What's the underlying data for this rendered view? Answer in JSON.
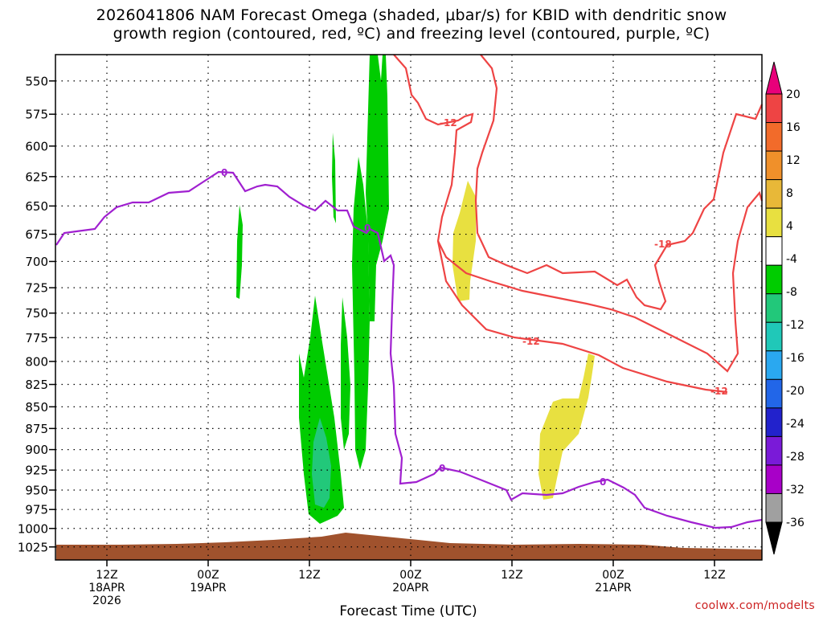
{
  "title": {
    "line1": "2026041806 NAM Forecast Omega (shaded, μbar/s) for KBID with dendritic snow",
    "line2": "growth region (contoured, red, ºC) and freezing level (contoured, purple, ºC)"
  },
  "credit": "coolwx.com/modelts",
  "chart_data": {
    "type": "heatmap",
    "xlabel": "Forecast Time (UTC)",
    "ylabel": "",
    "y_ticks": [
      "550",
      "575",
      "600",
      "625",
      "650",
      "675",
      "700",
      "725",
      "750",
      "775",
      "800",
      "825",
      "850",
      "875",
      "900",
      "925",
      "950",
      "975",
      "1000",
      "1025"
    ],
    "x_ticks": [
      {
        "lines": [
          "12Z",
          "18APR",
          "2026"
        ]
      },
      {
        "lines": [
          "00Z",
          "19APR"
        ]
      },
      {
        "lines": [
          "12Z"
        ]
      },
      {
        "lines": [
          "00Z",
          "20APR"
        ]
      },
      {
        "lines": [
          "12Z"
        ]
      },
      {
        "lines": [
          "00Z",
          "21APR"
        ]
      },
      {
        "lines": [
          "12Z"
        ]
      }
    ],
    "colorbar": {
      "labels": [
        "20",
        "16",
        "12",
        "8",
        "4",
        "-4",
        "-8",
        "-12",
        "-16",
        "-20",
        "-24",
        "-28",
        "-32",
        "-36"
      ],
      "colors": [
        "#e8007a",
        "#ee4444",
        "#f26b2a",
        "#f0902a",
        "#e8b838",
        "#e8e040",
        "#ffffff",
        "#00cc00",
        "#22c87a",
        "#20c8b8",
        "#2aa8f0",
        "#2266e8",
        "#2222cc",
        "#7a1ad8",
        "#a800c8",
        "#a0a0a0",
        "#000000"
      ]
    },
    "series_colors": {
      "dendritic_snow_growth": "#ee4444",
      "freezing_level": "#a020d0",
      "terrain": "#a0522d"
    },
    "contour_labels": {
      "dendritic": [
        "-12",
        "-12",
        "-12",
        "-18"
      ],
      "freezing": [
        "0",
        "0",
        "0",
        "0"
      ]
    }
  }
}
